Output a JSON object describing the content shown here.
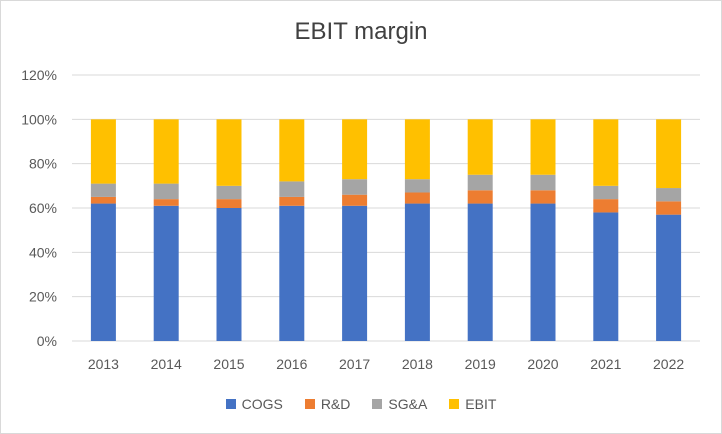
{
  "chart_data": {
    "type": "bar",
    "stacked": true,
    "title": "EBIT margin",
    "xlabel": "",
    "ylabel": "",
    "ylim": [
      0,
      120
    ],
    "yticks": [
      "0%",
      "20%",
      "40%",
      "60%",
      "80%",
      "100%",
      "120%"
    ],
    "categories": [
      "2013",
      "2014",
      "2015",
      "2016",
      "2017",
      "2018",
      "2019",
      "2020",
      "2021",
      "2022"
    ],
    "series": [
      {
        "name": "COGS",
        "color": "#4472C4",
        "values": [
          62,
          61,
          60,
          61,
          61,
          62,
          62,
          62,
          58,
          57
        ]
      },
      {
        "name": "R&D",
        "color": "#ED7D31",
        "values": [
          3,
          3,
          4,
          4,
          5,
          5,
          6,
          6,
          6,
          6
        ]
      },
      {
        "name": "SG&A",
        "color": "#A5A5A5",
        "values": [
          6,
          7,
          6,
          7,
          7,
          6,
          7,
          7,
          6,
          6
        ]
      },
      {
        "name": "EBIT",
        "color": "#FFC000",
        "values": [
          29,
          29,
          30,
          28,
          27,
          27,
          25,
          25,
          30,
          31
        ]
      }
    ],
    "grid": true,
    "legend_position": "bottom"
  }
}
